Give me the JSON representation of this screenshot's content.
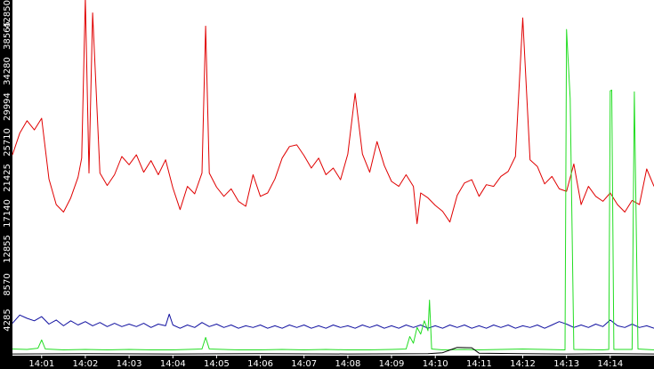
{
  "chart_data": {
    "type": "line",
    "title": "",
    "xlabel": "",
    "ylabel": "",
    "ylim": [
      0,
      42850
    ],
    "xlim": [
      "14:00:20",
      "14:15:00"
    ],
    "grid": false,
    "legend": "none",
    "y_ticks": [
      {
        "value": 4285,
        "label": "4285"
      },
      {
        "value": 8570,
        "label": "8570"
      },
      {
        "value": 12855,
        "label": "12855"
      },
      {
        "value": 17140,
        "label": "17140"
      },
      {
        "value": 21425,
        "label": "21425"
      },
      {
        "value": 25710,
        "label": "25710"
      },
      {
        "value": 29994,
        "label": "29994"
      },
      {
        "value": 34280,
        "label": "34280"
      },
      {
        "value": 38565,
        "label": "38565"
      },
      {
        "value": 42850,
        "label": "42850"
      }
    ],
    "x_ticks": [
      {
        "value": "14:01",
        "label": "14:01"
      },
      {
        "value": "14:02",
        "label": "14:02"
      },
      {
        "value": "14:03",
        "label": "14:03"
      },
      {
        "value": "14:04",
        "label": "14:04"
      },
      {
        "value": "14:05",
        "label": "14:05"
      },
      {
        "value": "14:06",
        "label": "14:06"
      },
      {
        "value": "14:07",
        "label": "14:07"
      },
      {
        "value": "14:08",
        "label": "14:08"
      },
      {
        "value": "14:09",
        "label": "14:09"
      },
      {
        "value": "14:10",
        "label": "14:10"
      },
      {
        "value": "14:11",
        "label": "14:11"
      },
      {
        "value": "14:12",
        "label": "14:12"
      },
      {
        "value": "14:13",
        "label": "14:13"
      },
      {
        "value": "14:14",
        "label": "14:14"
      }
    ],
    "series": [
      {
        "color": "#e00000",
        "points": [
          [
            "14:00:20",
            24200
          ],
          [
            "14:00:30",
            26800
          ],
          [
            "14:00:40",
            28300
          ],
          [
            "14:00:50",
            27200
          ],
          [
            "14:01:00",
            28600
          ],
          [
            "14:01:10",
            21300
          ],
          [
            "14:01:20",
            18200
          ],
          [
            "14:01:30",
            17300
          ],
          [
            "14:01:40",
            19000
          ],
          [
            "14:01:50",
            21500
          ],
          [
            "14:01:55",
            23800
          ],
          [
            "14:02:00",
            43100
          ],
          [
            "14:02:05",
            22000
          ],
          [
            "14:02:10",
            41300
          ],
          [
            "14:02:20",
            22000
          ],
          [
            "14:02:30",
            20500
          ],
          [
            "14:02:40",
            21800
          ],
          [
            "14:02:50",
            24000
          ],
          [
            "14:03:00",
            23000
          ],
          [
            "14:03:10",
            24200
          ],
          [
            "14:03:20",
            22100
          ],
          [
            "14:03:30",
            23500
          ],
          [
            "14:03:40",
            21800
          ],
          [
            "14:03:50",
            23600
          ],
          [
            "14:04:00",
            20200
          ],
          [
            "14:04:10",
            17600
          ],
          [
            "14:04:20",
            20400
          ],
          [
            "14:04:30",
            19500
          ],
          [
            "14:04:40",
            22000
          ],
          [
            "14:04:45",
            39700
          ],
          [
            "14:04:50",
            22000
          ],
          [
            "14:05:00",
            20300
          ],
          [
            "14:05:10",
            19200
          ],
          [
            "14:05:20",
            20100
          ],
          [
            "14:05:30",
            18600
          ],
          [
            "14:05:40",
            18000
          ],
          [
            "14:05:50",
            21800
          ],
          [
            "14:06:00",
            19200
          ],
          [
            "14:06:10",
            19600
          ],
          [
            "14:06:20",
            21300
          ],
          [
            "14:06:30",
            23800
          ],
          [
            "14:06:40",
            25200
          ],
          [
            "14:06:50",
            25400
          ],
          [
            "14:07:00",
            24100
          ],
          [
            "14:07:10",
            22600
          ],
          [
            "14:07:20",
            23800
          ],
          [
            "14:07:30",
            21800
          ],
          [
            "14:07:40",
            22600
          ],
          [
            "14:07:50",
            21200
          ],
          [
            "14:08:00",
            24300
          ],
          [
            "14:08:10",
            31600
          ],
          [
            "14:08:20",
            24300
          ],
          [
            "14:08:30",
            22100
          ],
          [
            "14:08:40",
            25800
          ],
          [
            "14:08:50",
            22900
          ],
          [
            "14:09:00",
            21000
          ],
          [
            "14:09:10",
            20400
          ],
          [
            "14:09:20",
            21800
          ],
          [
            "14:09:30",
            20400
          ],
          [
            "14:09:35",
            15900
          ],
          [
            "14:09:40",
            19600
          ],
          [
            "14:09:50",
            19000
          ],
          [
            "14:10:00",
            18100
          ],
          [
            "14:10:10",
            17400
          ],
          [
            "14:10:20",
            16100
          ],
          [
            "14:10:30",
            19300
          ],
          [
            "14:10:40",
            20800
          ],
          [
            "14:10:50",
            21200
          ],
          [
            "14:11:00",
            19200
          ],
          [
            "14:11:10",
            20600
          ],
          [
            "14:11:20",
            20400
          ],
          [
            "14:11:30",
            21600
          ],
          [
            "14:11:40",
            22200
          ],
          [
            "14:11:50",
            24000
          ],
          [
            "14:12:00",
            40700
          ],
          [
            "14:12:10",
            23600
          ],
          [
            "14:12:20",
            22800
          ],
          [
            "14:12:30",
            20700
          ],
          [
            "14:12:40",
            21600
          ],
          [
            "14:12:50",
            20100
          ],
          [
            "14:13:00",
            19800
          ],
          [
            "14:13:10",
            23100
          ],
          [
            "14:13:20",
            18200
          ],
          [
            "14:13:30",
            20400
          ],
          [
            "14:13:40",
            19200
          ],
          [
            "14:13:50",
            18600
          ],
          [
            "14:14:00",
            19600
          ],
          [
            "14:14:10",
            18200
          ],
          [
            "14:14:20",
            17300
          ],
          [
            "14:14:30",
            18700
          ],
          [
            "14:14:40",
            18200
          ],
          [
            "14:14:50",
            22500
          ],
          [
            "14:15:00",
            20400
          ]
        ]
      },
      {
        "color": "#1010a0",
        "points": [
          [
            "14:00:20",
            3900
          ],
          [
            "14:00:30",
            4900
          ],
          [
            "14:00:40",
            4500
          ],
          [
            "14:00:50",
            4200
          ],
          [
            "14:01:00",
            4700
          ],
          [
            "14:01:10",
            3800
          ],
          [
            "14:01:20",
            4300
          ],
          [
            "14:01:30",
            3600
          ],
          [
            "14:01:40",
            4200
          ],
          [
            "14:01:50",
            3700
          ],
          [
            "14:02:00",
            4100
          ],
          [
            "14:02:10",
            3600
          ],
          [
            "14:02:20",
            4000
          ],
          [
            "14:02:30",
            3500
          ],
          [
            "14:02:40",
            3900
          ],
          [
            "14:02:50",
            3500
          ],
          [
            "14:03:00",
            3800
          ],
          [
            "14:03:10",
            3500
          ],
          [
            "14:03:20",
            3900
          ],
          [
            "14:03:30",
            3400
          ],
          [
            "14:03:40",
            3800
          ],
          [
            "14:03:50",
            3600
          ],
          [
            "14:03:55",
            5000
          ],
          [
            "14:04:00",
            3700
          ],
          [
            "14:04:10",
            3300
          ],
          [
            "14:04:20",
            3700
          ],
          [
            "14:04:30",
            3400
          ],
          [
            "14:04:40",
            4000
          ],
          [
            "14:04:50",
            3500
          ],
          [
            "14:05:00",
            3800
          ],
          [
            "14:05:10",
            3400
          ],
          [
            "14:05:20",
            3700
          ],
          [
            "14:05:30",
            3300
          ],
          [
            "14:05:40",
            3600
          ],
          [
            "14:05:50",
            3400
          ],
          [
            "14:06:00",
            3700
          ],
          [
            "14:06:10",
            3300
          ],
          [
            "14:06:20",
            3600
          ],
          [
            "14:06:30",
            3300
          ],
          [
            "14:06:40",
            3700
          ],
          [
            "14:06:50",
            3400
          ],
          [
            "14:07:00",
            3700
          ],
          [
            "14:07:10",
            3300
          ],
          [
            "14:07:20",
            3600
          ],
          [
            "14:07:30",
            3300
          ],
          [
            "14:07:40",
            3700
          ],
          [
            "14:07:50",
            3400
          ],
          [
            "14:08:00",
            3600
          ],
          [
            "14:08:10",
            3300
          ],
          [
            "14:08:20",
            3700
          ],
          [
            "14:08:30",
            3400
          ],
          [
            "14:08:40",
            3700
          ],
          [
            "14:08:50",
            3300
          ],
          [
            "14:09:00",
            3600
          ],
          [
            "14:09:10",
            3300
          ],
          [
            "14:09:20",
            3700
          ],
          [
            "14:09:30",
            3400
          ],
          [
            "14:09:40",
            3700
          ],
          [
            "14:09:50",
            3300
          ],
          [
            "14:10:00",
            3600
          ],
          [
            "14:10:10",
            3300
          ],
          [
            "14:10:20",
            3700
          ],
          [
            "14:10:30",
            3400
          ],
          [
            "14:10:40",
            3700
          ],
          [
            "14:10:50",
            3300
          ],
          [
            "14:11:00",
            3600
          ],
          [
            "14:11:10",
            3300
          ],
          [
            "14:11:20",
            3700
          ],
          [
            "14:11:30",
            3400
          ],
          [
            "14:11:40",
            3700
          ],
          [
            "14:11:50",
            3300
          ],
          [
            "14:12:00",
            3600
          ],
          [
            "14:12:10",
            3400
          ],
          [
            "14:12:20",
            3700
          ],
          [
            "14:12:30",
            3300
          ],
          [
            "14:12:40",
            3700
          ],
          [
            "14:12:50",
            4100
          ],
          [
            "14:13:00",
            3800
          ],
          [
            "14:13:10",
            3400
          ],
          [
            "14:13:20",
            3700
          ],
          [
            "14:13:30",
            3400
          ],
          [
            "14:13:40",
            3800
          ],
          [
            "14:13:50",
            3500
          ],
          [
            "14:14:00",
            4300
          ],
          [
            "14:14:10",
            3600
          ],
          [
            "14:14:20",
            3400
          ],
          [
            "14:14:30",
            3800
          ],
          [
            "14:14:40",
            3400
          ],
          [
            "14:14:50",
            3600
          ],
          [
            "14:15:00",
            3300
          ]
        ]
      },
      {
        "color": "#22dd22",
        "points": [
          [
            "14:00:20",
            800
          ],
          [
            "14:00:40",
            750
          ],
          [
            "14:00:55",
            900
          ],
          [
            "14:01:00",
            1900
          ],
          [
            "14:01:05",
            800
          ],
          [
            "14:01:30",
            700
          ],
          [
            "14:02:00",
            750
          ],
          [
            "14:02:30",
            700
          ],
          [
            "14:03:00",
            750
          ],
          [
            "14:03:30",
            700
          ],
          [
            "14:04:00",
            700
          ],
          [
            "14:04:40",
            800
          ],
          [
            "14:04:45",
            2200
          ],
          [
            "14:04:50",
            800
          ],
          [
            "14:05:30",
            700
          ],
          [
            "14:06:00",
            700
          ],
          [
            "14:06:30",
            750
          ],
          [
            "14:07:00",
            700
          ],
          [
            "14:07:30",
            750
          ],
          [
            "14:08:00",
            700
          ],
          [
            "14:08:30",
            700
          ],
          [
            "14:09:00",
            750
          ],
          [
            "14:09:20",
            800
          ],
          [
            "14:09:25",
            2300
          ],
          [
            "14:09:30",
            1500
          ],
          [
            "14:09:35",
            3400
          ],
          [
            "14:09:40",
            2600
          ],
          [
            "14:09:45",
            4200
          ],
          [
            "14:09:50",
            3000
          ],
          [
            "14:09:52",
            6700
          ],
          [
            "14:09:55",
            800
          ],
          [
            "14:10:10",
            700
          ],
          [
            "14:10:40",
            750
          ],
          [
            "14:11:00",
            700
          ],
          [
            "14:11:30",
            750
          ],
          [
            "14:12:00",
            800
          ],
          [
            "14:12:30",
            750
          ],
          [
            "14:12:58",
            700
          ],
          [
            "14:13:00",
            39300
          ],
          [
            "14:13:05",
            31000
          ],
          [
            "14:13:10",
            750
          ],
          [
            "14:13:50",
            700
          ],
          [
            "14:13:58",
            750
          ],
          [
            "14:14:00",
            31900
          ],
          [
            "14:14:02",
            32000
          ],
          [
            "14:14:05",
            750
          ],
          [
            "14:14:30",
            750
          ],
          [
            "14:14:33",
            31800
          ],
          [
            "14:14:38",
            800
          ],
          [
            "14:15:00",
            700
          ]
        ]
      },
      {
        "color": "#000000",
        "points": [
          [
            "14:00:20",
            200
          ],
          [
            "14:02:00",
            250
          ],
          [
            "14:04:00",
            200
          ],
          [
            "14:06:00",
            250
          ],
          [
            "14:08:00",
            200
          ],
          [
            "14:09:50",
            250
          ],
          [
            "14:10:10",
            350
          ],
          [
            "14:10:30",
            1000
          ],
          [
            "14:10:50",
            950
          ],
          [
            "14:11:00",
            300
          ],
          [
            "14:12:00",
            250
          ],
          [
            "14:13:00",
            200
          ],
          [
            "14:14:00",
            250
          ],
          [
            "14:15:00",
            200
          ]
        ]
      }
    ]
  }
}
